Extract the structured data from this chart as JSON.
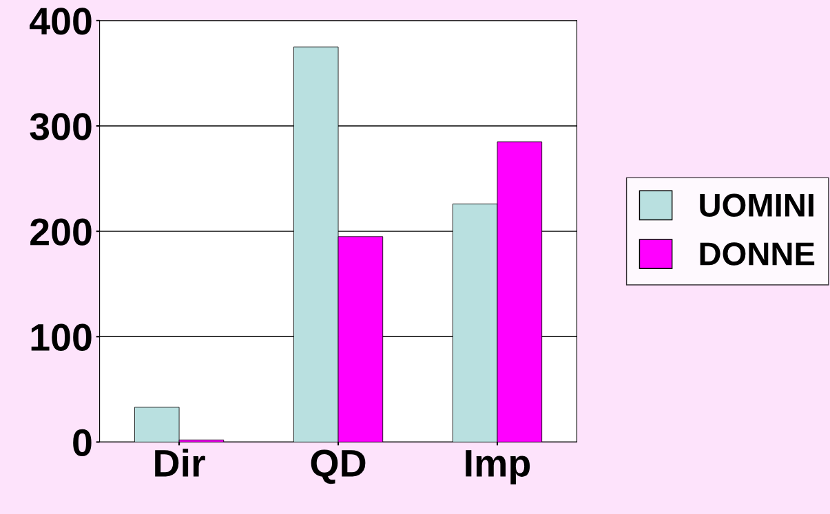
{
  "chart_data": {
    "type": "bar",
    "categories": [
      "Dir",
      "QD",
      "Imp"
    ],
    "series": [
      {
        "name": "UOMINI",
        "color": "#b9e0e0",
        "values": [
          33,
          375,
          226
        ]
      },
      {
        "name": "DONNE",
        "color": "#ff00ff",
        "values": [
          2,
          195,
          285
        ]
      }
    ],
    "ylim": [
      0,
      400
    ],
    "yticks": [
      0,
      100,
      200,
      300,
      400
    ],
    "grid": "y",
    "legend": "right"
  }
}
